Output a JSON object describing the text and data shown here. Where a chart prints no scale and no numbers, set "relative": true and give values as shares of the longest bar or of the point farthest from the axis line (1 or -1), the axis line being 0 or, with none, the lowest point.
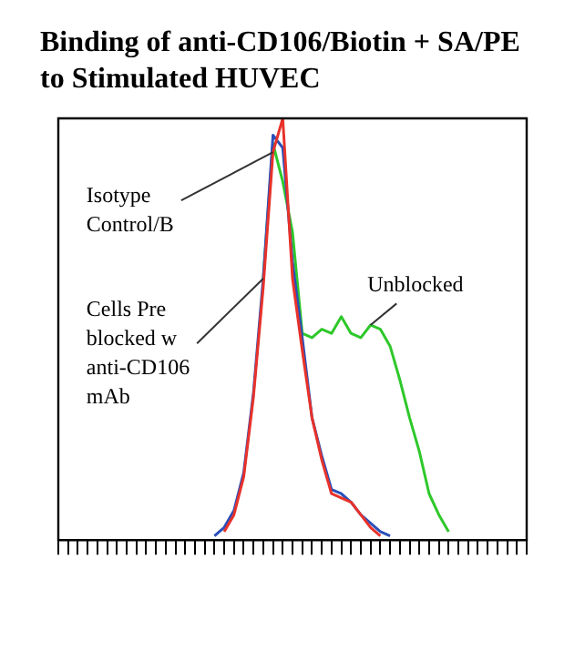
{
  "chart_data": {
    "type": "line",
    "title": "Binding of anti-CD106/Biotin + SA/PE to Stimulated HUVEC",
    "relative": true,
    "marker": "none",
    "grid": false,
    "categories": [
      null,
      null,
      null,
      null,
      null,
      null,
      null,
      null,
      null,
      null,
      null,
      null,
      null,
      null,
      null,
      null,
      null,
      null,
      null,
      null,
      null,
      null,
      null,
      null,
      null,
      null,
      null,
      null,
      null,
      null,
      null,
      null,
      null,
      null,
      null,
      null,
      null,
      null,
      null,
      null,
      null,
      null,
      null,
      null,
      null,
      null,
      null,
      null,
      null
    ],
    "series": [
      {
        "name": "Isotype Control/B",
        "color": "#e8322a",
        "values": [
          null,
          null,
          null,
          null,
          null,
          null,
          null,
          null,
          null,
          null,
          null,
          null,
          null,
          null,
          null,
          null,
          null,
          0.02,
          0.06,
          0.15,
          0.34,
          0.6,
          0.92,
          1,
          0.62,
          0.45,
          0.29,
          0.19,
          0.11,
          0.1,
          0.09,
          0.06,
          0.03,
          0.01,
          null,
          null,
          null,
          null,
          null,
          null,
          null,
          null,
          null,
          null,
          null,
          null,
          null,
          null,
          null
        ]
      },
      {
        "name": "Cells Pre blocked w anti-CD106 mAb",
        "color": "#2a4fb8",
        "values": [
          null,
          null,
          null,
          null,
          null,
          null,
          null,
          null,
          null,
          null,
          null,
          null,
          null,
          null,
          null,
          null,
          0.01,
          0.03,
          0.07,
          0.16,
          0.35,
          0.62,
          0.96,
          0.93,
          0.66,
          0.48,
          0.29,
          0.2,
          0.12,
          0.11,
          0.09,
          0.06,
          0.04,
          0.02,
          0.01,
          null,
          null,
          null,
          null,
          null,
          null,
          null,
          null,
          null,
          null,
          null,
          null,
          null,
          null
        ]
      },
      {
        "name": "Unblocked",
        "color": "#2ec82a",
        "values": [
          null,
          null,
          null,
          null,
          null,
          null,
          null,
          null,
          null,
          null,
          null,
          null,
          null,
          null,
          null,
          null,
          null,
          null,
          null,
          null,
          null,
          0.62,
          0.94,
          0.85,
          0.73,
          0.49,
          0.48,
          0.5,
          0.49,
          0.53,
          0.49,
          0.48,
          0.51,
          0.5,
          0.46,
          0.38,
          0.29,
          0.21,
          0.11,
          0.06,
          0.02,
          null,
          null,
          null,
          null,
          null,
          null,
          null,
          null
        ]
      }
    ]
  }
}
